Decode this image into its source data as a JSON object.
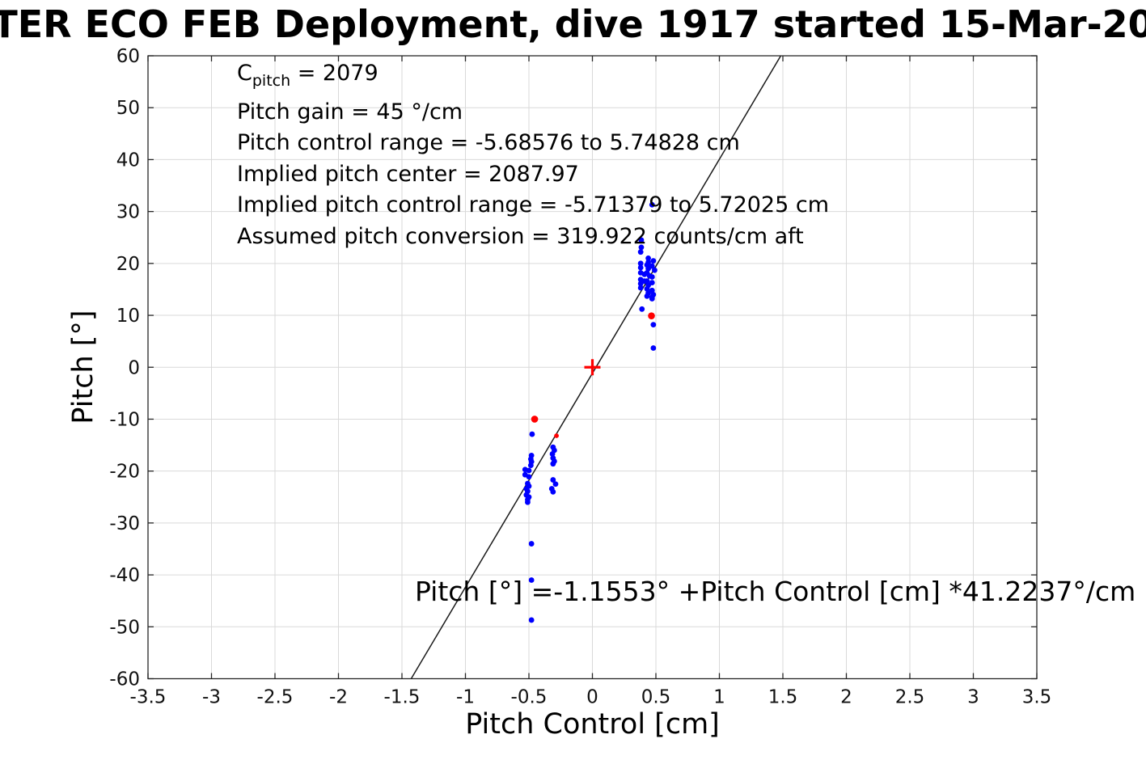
{
  "chart_data": {
    "type": "scatter",
    "title": "TER ECO FEB Deployment, dive 1917 started 15-Mar-20",
    "xlabel": "Pitch Control [cm]",
    "ylabel": "Pitch [°]",
    "xlim": [
      -3.5,
      3.5
    ],
    "ylim": [
      -60,
      60
    ],
    "xticks": [
      -3.5,
      -3,
      -2.5,
      -2,
      -1.5,
      -1,
      -0.5,
      0,
      0.5,
      1,
      1.5,
      2,
      2.5,
      3,
      3.5
    ],
    "yticks": [
      -60,
      -50,
      -40,
      -30,
      -20,
      -10,
      0,
      10,
      20,
      30,
      40,
      50,
      60
    ],
    "grid": true,
    "legend": "none",
    "annotation_c_pitch": {
      "base": "C",
      "sub": "pitch",
      "rest": " = 2079"
    },
    "annotation_lines": [
      "Pitch gain = 45 °/cm",
      "Pitch control range = -5.68576 to 5.74828 cm",
      "Implied pitch center = 2087.97",
      "Implied pitch control range = -5.71379 to 5.72025 cm",
      "Assumed pitch conversion = 319.922 counts/cm aft"
    ],
    "equation": "Pitch [°] =-1.1553° +Pitch Control [cm] *41.2237°/cm",
    "fit_line": {
      "slope": 41.2237,
      "intercept": -1.1553,
      "color": "#1a1a1a"
    },
    "origin_marker": {
      "marker": "plus",
      "x": 0,
      "y": 0,
      "color": "#ff0000",
      "arm": 10
    },
    "series": [
      {
        "name": "pitch-samples",
        "marker": "dot",
        "color": "#0000ff",
        "size": 3.4,
        "points": [
          [
            0.47,
            31.3
          ],
          [
            0.385,
            24.5
          ],
          [
            0.385,
            23.1
          ],
          [
            0.38,
            22.2
          ],
          [
            0.38,
            20.0
          ],
          [
            0.38,
            19.2
          ],
          [
            0.38,
            18.2
          ],
          [
            0.38,
            16.9
          ],
          [
            0.38,
            16.1
          ],
          [
            0.38,
            15.3
          ],
          [
            0.44,
            21.0
          ],
          [
            0.44,
            20.2
          ],
          [
            0.43,
            19.7
          ],
          [
            0.44,
            19.0
          ],
          [
            0.43,
            18.2
          ],
          [
            0.45,
            17.6
          ],
          [
            0.43,
            16.6
          ],
          [
            0.44,
            15.8
          ],
          [
            0.43,
            15.1
          ],
          [
            0.44,
            14.3
          ],
          [
            0.48,
            20.5
          ],
          [
            0.47,
            19.5
          ],
          [
            0.49,
            18.7
          ],
          [
            0.47,
            17.4
          ],
          [
            0.48,
            14.0
          ],
          [
            0.47,
            13.2
          ],
          [
            0.41,
            17.9
          ],
          [
            0.41,
            16.6
          ],
          [
            0.47,
            16.3
          ],
          [
            0.47,
            14.8
          ],
          [
            0.47,
            13.5
          ],
          [
            0.43,
            13.7
          ],
          [
            0.39,
            11.2
          ],
          [
            0.48,
            8.2
          ],
          [
            0.48,
            3.7
          ],
          [
            -0.475,
            -12.9
          ],
          [
            -0.31,
            -15.4
          ],
          [
            -0.3,
            -16.0
          ],
          [
            -0.315,
            -16.7
          ],
          [
            -0.31,
            -17.5
          ],
          [
            -0.3,
            -18.1
          ],
          [
            -0.31,
            -18.6
          ],
          [
            -0.48,
            -17.0
          ],
          [
            -0.485,
            -17.7
          ],
          [
            -0.48,
            -18.2
          ],
          [
            -0.485,
            -18.9
          ],
          [
            -0.53,
            -19.7
          ],
          [
            -0.5,
            -19.9
          ],
          [
            -0.53,
            -20.7
          ],
          [
            -0.5,
            -21.1
          ],
          [
            -0.51,
            -22.4
          ],
          [
            -0.5,
            -22.9
          ],
          [
            -0.52,
            -23.4
          ],
          [
            -0.51,
            -23.9
          ],
          [
            -0.52,
            -24.6
          ],
          [
            -0.5,
            -25.0
          ],
          [
            -0.51,
            -25.5
          ],
          [
            -0.51,
            -26.0
          ],
          [
            -0.31,
            -21.7
          ],
          [
            -0.29,
            -22.5
          ],
          [
            -0.32,
            -23.4
          ],
          [
            -0.31,
            -24.0
          ],
          [
            -0.48,
            -34.0
          ],
          [
            -0.48,
            -41.0
          ],
          [
            -0.48,
            -48.7
          ]
        ]
      },
      {
        "name": "flagged-samples",
        "marker": "dot",
        "color": "#ff0000",
        "size": 4.3,
        "points": [
          [
            -0.455,
            -10.0,
            4.3
          ],
          [
            -0.283,
            -13.2,
            2.9
          ],
          [
            0.465,
            9.9,
            4.3
          ]
        ]
      }
    ],
    "colors": {
      "points": "#0000ff",
      "flagged": "#ff0000",
      "fit_line": "#1a1a1a",
      "grid": "#d9d9d9",
      "axis": "#262626"
    }
  }
}
